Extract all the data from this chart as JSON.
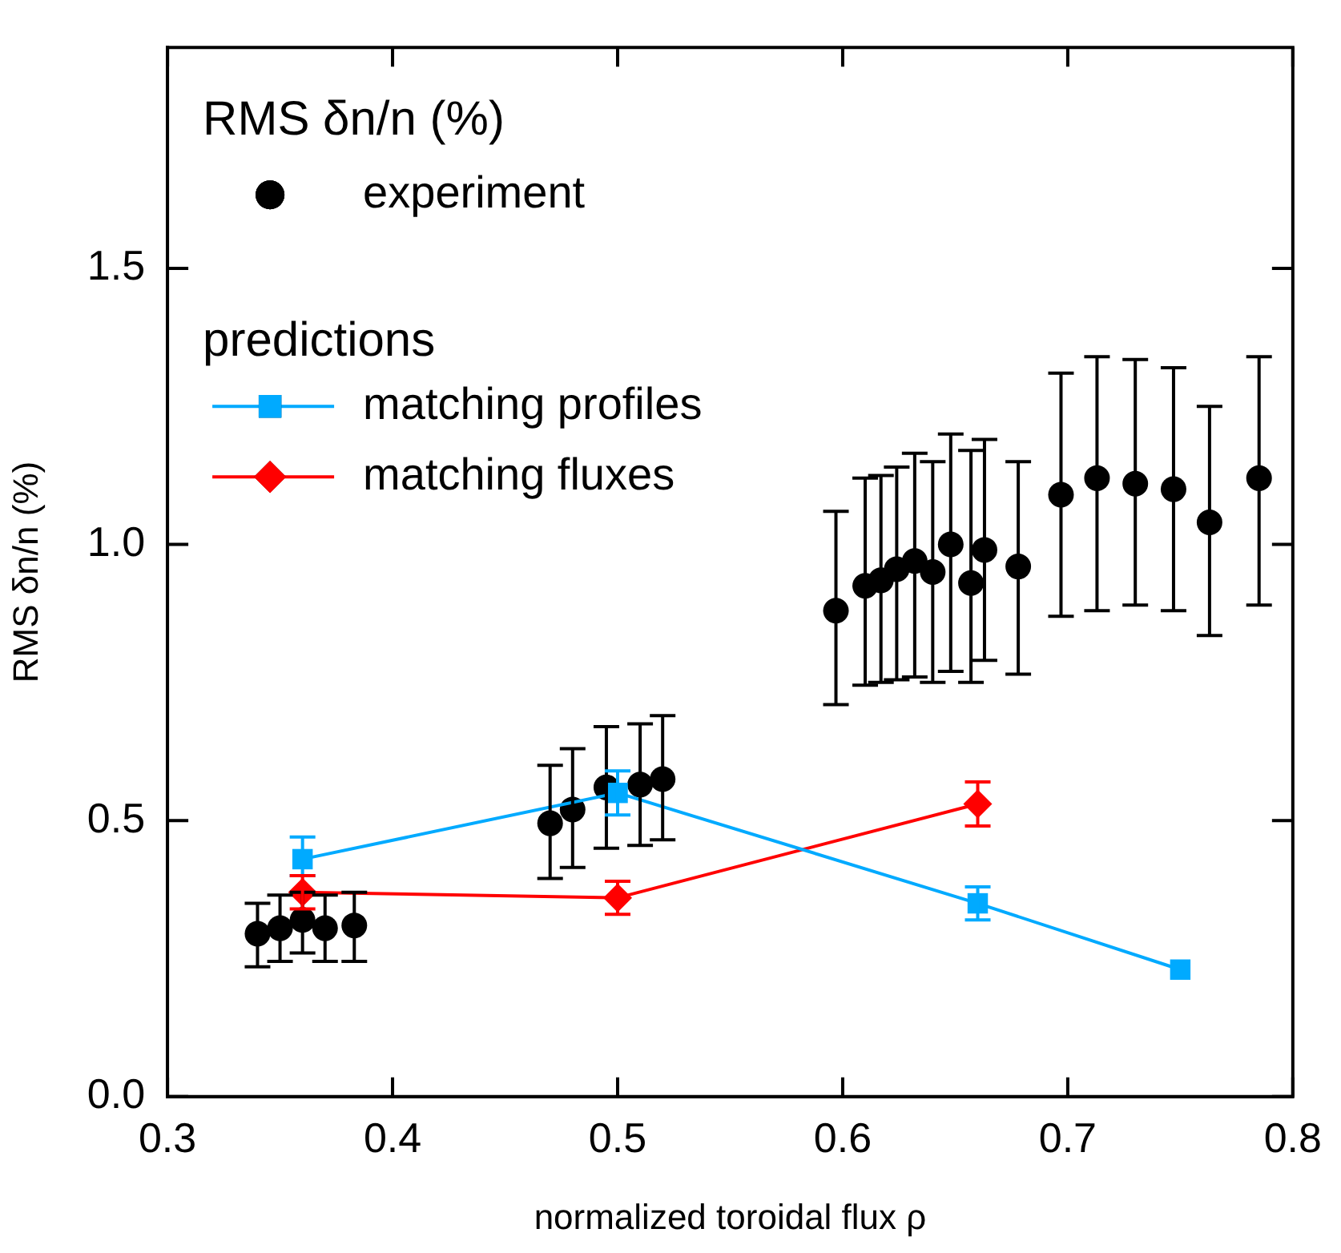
{
  "chart_data": {
    "type": "scatter",
    "xlabel": "normalized toroidal flux ρ",
    "ylabel": "RMS δn/n (%)",
    "legend_title": "RMS δn/n (%)",
    "annotations": [
      "predictions"
    ],
    "legend": "top left",
    "xlim": [
      0.3,
      0.8
    ],
    "xticks": [
      0.3,
      0.4,
      0.5,
      0.6,
      0.7,
      0.8
    ],
    "ylim": [
      0,
      1.9
    ],
    "yticks": [
      {
        "value": 0,
        "label": "0.0"
      },
      {
        "value": 0.5,
        "label": "0.5"
      },
      {
        "value": 1,
        "label": "1.0"
      },
      {
        "value": 1.5,
        "label": "1.5"
      }
    ],
    "series": [
      {
        "name": "experiment",
        "type": "scatter",
        "marker": "circle",
        "color": "#000000",
        "x": [
          0.34,
          0.35,
          0.36,
          0.37,
          0.383,
          0.47,
          0.48,
          0.495,
          0.51,
          0.52,
          0.597,
          0.61,
          0.617,
          0.624,
          0.632,
          0.64,
          0.648,
          0.657,
          0.663,
          0.678,
          0.697,
          0.713,
          0.73,
          0.747,
          0.763,
          0.785
        ],
        "values": [
          0.295,
          0.305,
          0.32,
          0.305,
          0.31,
          0.495,
          0.52,
          0.56,
          0.565,
          0.575,
          0.88,
          0.925,
          0.935,
          0.955,
          0.97,
          0.95,
          1.0,
          0.93,
          0.99,
          0.96,
          1.09,
          1.12,
          1.11,
          1.1,
          1.04,
          1.12
        ],
        "errors": [
          [
            0.235,
            0.35
          ],
          [
            0.245,
            0.365
          ],
          [
            0.26,
            0.37
          ],
          [
            0.245,
            0.365
          ],
          [
            0.245,
            0.37
          ],
          [
            0.395,
            0.6
          ],
          [
            0.415,
            0.63
          ],
          [
            0.45,
            0.67
          ],
          [
            0.455,
            0.675
          ],
          [
            0.465,
            0.69
          ],
          [
            0.71,
            1.06
          ],
          [
            0.745,
            1.12
          ],
          [
            0.75,
            1.125
          ],
          [
            0.755,
            1.14
          ],
          [
            0.76,
            1.165
          ],
          [
            0.75,
            1.15
          ],
          [
            0.77,
            1.2
          ],
          [
            0.75,
            1.17
          ],
          [
            0.79,
            1.19
          ],
          [
            0.765,
            1.15
          ],
          [
            0.87,
            1.31
          ],
          [
            0.88,
            1.34
          ],
          [
            0.89,
            1.335
          ],
          [
            0.88,
            1.32
          ],
          [
            0.835,
            1.25
          ],
          [
            0.89,
            1.34
          ]
        ]
      },
      {
        "name": "matching profiles",
        "type": "line",
        "marker": "square",
        "color": "#00aaff",
        "x": [
          0.36,
          0.5,
          0.66,
          0.75
        ],
        "values": [
          0.43,
          0.55,
          0.35,
          0.23
        ],
        "errors": [
          [
            0.4,
            0.47
          ],
          [
            0.51,
            0.59
          ],
          [
            0.32,
            0.38
          ],
          null
        ]
      },
      {
        "name": "matching fluxes",
        "type": "line",
        "marker": "diamond",
        "color": "#ff0000",
        "x": [
          0.36,
          0.5,
          0.66
        ],
        "values": [
          0.37,
          0.36,
          0.53
        ],
        "errors": [
          [
            0.34,
            0.4
          ],
          [
            0.33,
            0.39
          ],
          [
            0.49,
            0.57
          ]
        ]
      }
    ]
  }
}
